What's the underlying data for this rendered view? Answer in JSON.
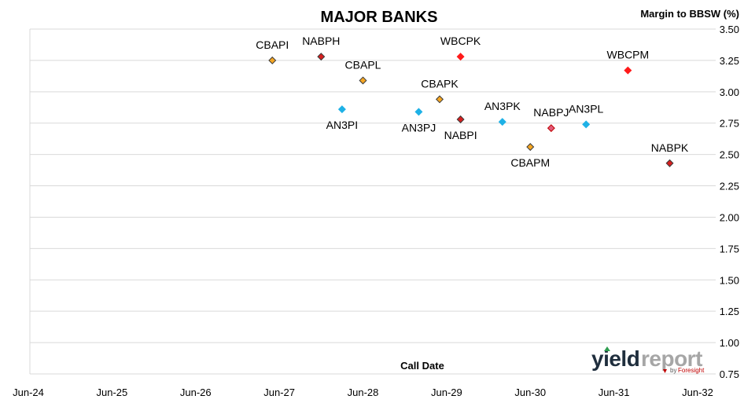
{
  "chart_data": {
    "type": "scatter",
    "title": "MAJOR BANKS",
    "ylabel": "Margin to BBSW (%)",
    "xlabel": "Call Date",
    "x_ticks": [
      "Jun-24",
      "Jun-25",
      "Jun-26",
      "Jun-27",
      "Jun-28",
      "Jun-29",
      "Jun-30",
      "Jun-31",
      "Jun-32"
    ],
    "y_ticks": [
      "0.75",
      "1.00",
      "1.25",
      "1.50",
      "1.75",
      "2.00",
      "2.25",
      "2.50",
      "2.75",
      "3.00",
      "3.25",
      "3.50"
    ],
    "xlim": [
      "2024-06",
      "2032-06"
    ],
    "ylim": [
      0.75,
      3.5
    ],
    "grid": "horizontal",
    "y_axis_side": "right",
    "points": [
      {
        "label": "CBAPI",
        "x": "2027-05",
        "y": 3.25,
        "color": "#f5a623",
        "outline": "#3a3a3a"
      },
      {
        "label": "NABPH",
        "x": "2027-12",
        "y": 3.28,
        "color": "#d61f1f",
        "outline": "#3a3a3a"
      },
      {
        "label": "CBAPL",
        "x": "2028-06",
        "y": 3.09,
        "color": "#f5a623",
        "outline": "#3a3a3a"
      },
      {
        "label": "AN3PI",
        "x": "2028-03",
        "y": 2.86,
        "color": "#1eb1e6",
        "outline": "#1eb1e6"
      },
      {
        "label": "WBCPK",
        "x": "2029-08",
        "y": 3.28,
        "color": "#ff1a1a",
        "outline": "#ff1a1a"
      },
      {
        "label": "CBAPK",
        "x": "2029-05",
        "y": 2.94,
        "color": "#f5a623",
        "outline": "#3a3a3a"
      },
      {
        "label": "AN3PJ",
        "x": "2029-02",
        "y": 2.84,
        "color": "#1eb1e6",
        "outline": "#1eb1e6"
      },
      {
        "label": "NABPI",
        "x": "2029-08",
        "y": 2.78,
        "color": "#d61f1f",
        "outline": "#3a3a3a"
      },
      {
        "label": "AN3PK",
        "x": "2030-02",
        "y": 2.76,
        "color": "#1eb1e6",
        "outline": "#1eb1e6"
      },
      {
        "label": "NABPJ",
        "x": "2030-09",
        "y": 2.71,
        "color": "#e05a7a",
        "outline": "#c00000"
      },
      {
        "label": "AN3PL",
        "x": "2031-02",
        "y": 2.74,
        "color": "#1eb1e6",
        "outline": "#1eb1e6"
      },
      {
        "label": "CBAPM",
        "x": "2030-06",
        "y": 2.56,
        "color": "#f5a623",
        "outline": "#3a3a3a"
      },
      {
        "label": "WBCPM",
        "x": "2031-08",
        "y": 3.17,
        "color": "#ff1a1a",
        "outline": "#ff1a1a"
      },
      {
        "label": "NABPK",
        "x": "2032-02",
        "y": 2.43,
        "color": "#d61f1f",
        "outline": "#3a3a3a"
      }
    ]
  },
  "watermark": {
    "text_dark": "yield",
    "text_light": "report",
    "sub_prefix": "by",
    "sub_brand": "Foresight"
  }
}
